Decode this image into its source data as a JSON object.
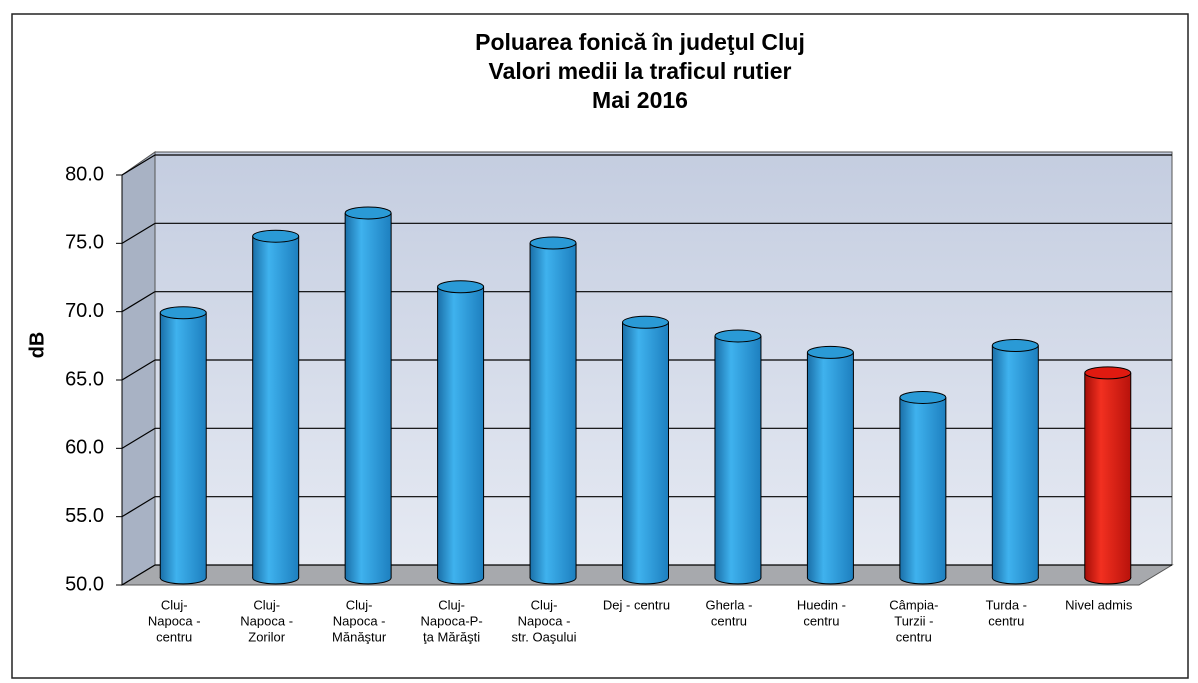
{
  "chart_data": {
    "type": "bar3d",
    "title": [
      "Poluarea fonică în judeţul Cluj",
      "Valori medii la traficul rutier",
      "Mai  2016"
    ],
    "ylabel": "dB",
    "categories": [
      [
        "Cluj-",
        "Napoca -",
        "centru"
      ],
      [
        "Cluj-",
        "Napoca -",
        "Zorilor"
      ],
      [
        "Cluj-",
        "Napoca -",
        "Mănăştur"
      ],
      [
        "Cluj-",
        "Napoca-P-",
        "ţa Mărăşti"
      ],
      [
        "Cluj-",
        "Napoca -",
        "str. Oaşului"
      ],
      [
        "Dej - centru"
      ],
      [
        "Gherla -",
        "centru"
      ],
      [
        "Huedin -",
        "centru"
      ],
      [
        "Câmpia-",
        "Turzii -",
        "centru"
      ],
      [
        "Turda -",
        "centru"
      ],
      [
        "Nivel admis"
      ]
    ],
    "values": [
      69.4,
      75.0,
      76.7,
      71.3,
      74.5,
      68.7,
      67.7,
      66.5,
      63.2,
      67.0,
      65.0
    ],
    "colors": [
      "#2a9ad6",
      "#2a9ad6",
      "#2a9ad6",
      "#2a9ad6",
      "#2a9ad6",
      "#2a9ad6",
      "#2a9ad6",
      "#2a9ad6",
      "#2a9ad6",
      "#2a9ad6",
      "#e01a10"
    ],
    "ylim": [
      50,
      80
    ],
    "yticks": [
      {
        "value": 50,
        "label": "50.0"
      },
      {
        "value": 55,
        "label": "55.0"
      },
      {
        "value": 60,
        "label": "60.0"
      },
      {
        "value": 65,
        "label": "65.0"
      },
      {
        "value": 70,
        "label": "70.0"
      },
      {
        "value": 75,
        "label": "75.0"
      },
      {
        "value": 80,
        "label": "80.0"
      }
    ],
    "grid": true
  }
}
